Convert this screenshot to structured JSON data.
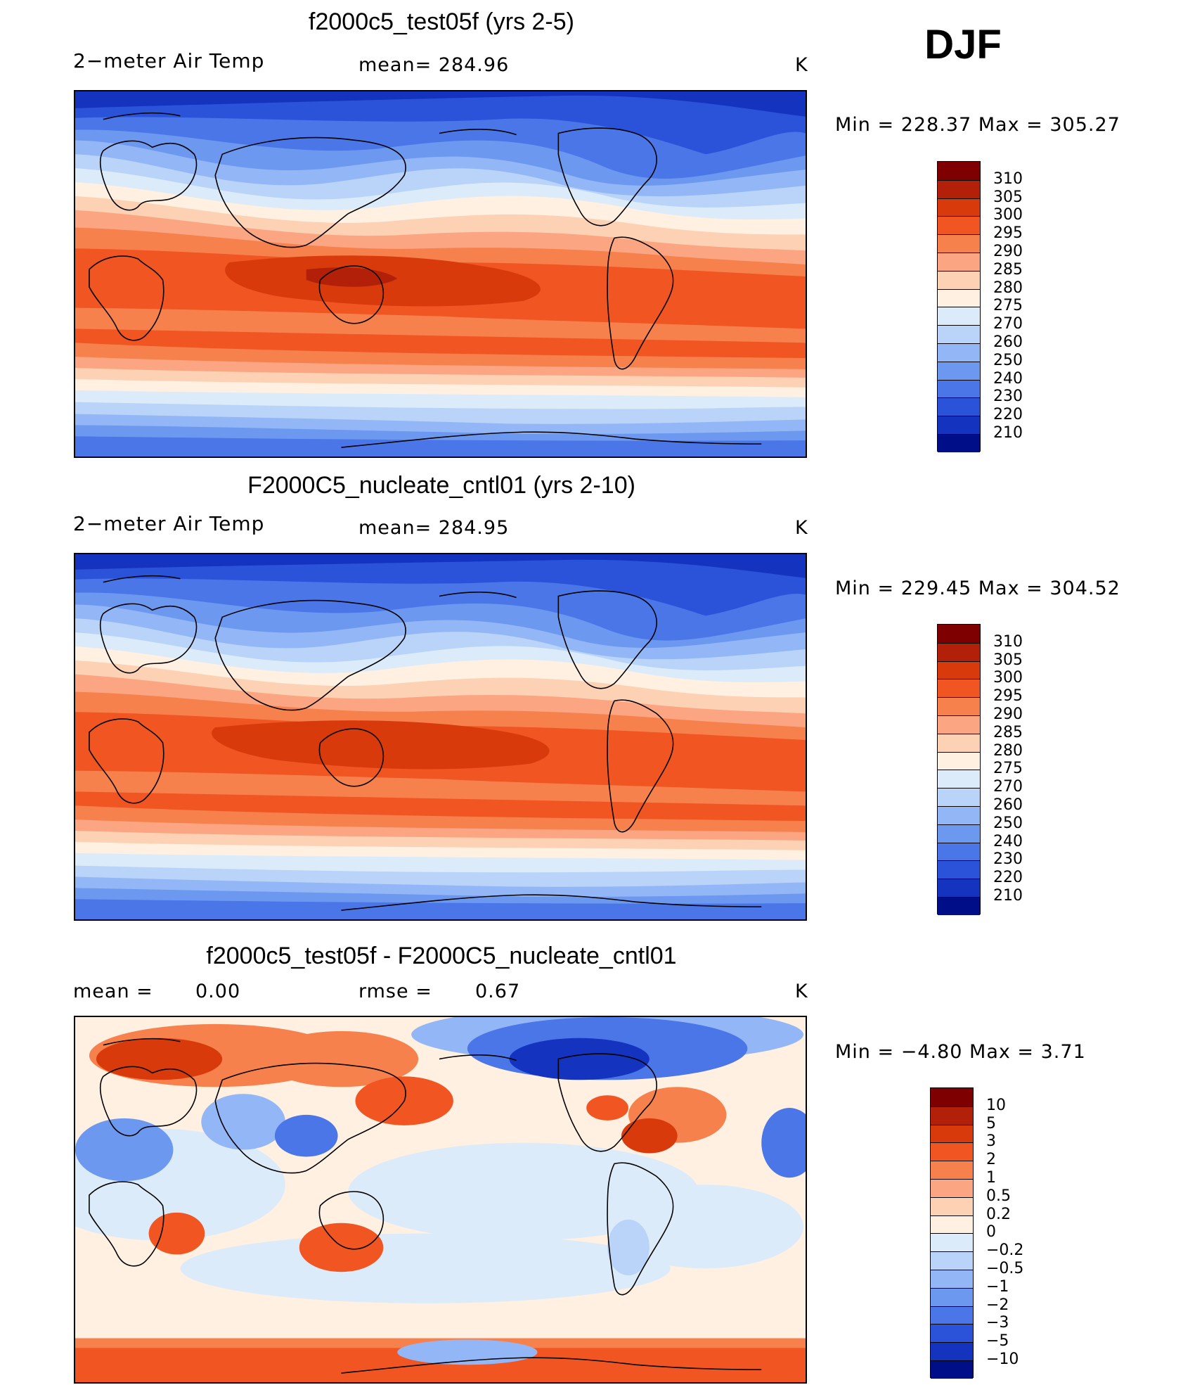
{
  "season": "DJF",
  "panels": [
    {
      "title": "f2000c5_test05f (yrs 2-5)",
      "left_label": "2−meter Air Temp",
      "mean_label": "mean=  284.96",
      "units": "K",
      "minmax": "Min  =  228.37  Max  =  305.27",
      "colorbar": {
        "labels": [
          "310",
          "305",
          "300",
          "295",
          "290",
          "285",
          "280",
          "275",
          "270",
          "260",
          "250",
          "240",
          "230",
          "220",
          "210"
        ],
        "colors": [
          "#7f0000",
          "#b2200a",
          "#d93a0c",
          "#f05522",
          "#f7814d",
          "#fba582",
          "#fdd1b3",
          "#fff0e2",
          "#dcebfa",
          "#b9d4f8",
          "#93b7f6",
          "#6d98f0",
          "#4a76e8",
          "#2a53da",
          "#1433bf",
          "#000f87"
        ]
      }
    },
    {
      "title": "F2000C5_nucleate_cntl01 (yrs 2-10)",
      "left_label": "2−meter Air Temp",
      "mean_label": "mean=  284.95",
      "units": "K",
      "minmax": "Min  =  229.45  Max  =  304.52",
      "colorbar": {
        "labels": [
          "310",
          "305",
          "300",
          "295",
          "290",
          "285",
          "280",
          "275",
          "270",
          "260",
          "250",
          "240",
          "230",
          "220",
          "210"
        ],
        "colors": [
          "#7f0000",
          "#b2200a",
          "#d93a0c",
          "#f05522",
          "#f7814d",
          "#fba582",
          "#fdd1b3",
          "#fff0e2",
          "#dcebfa",
          "#b9d4f8",
          "#93b7f6",
          "#6d98f0",
          "#4a76e8",
          "#2a53da",
          "#1433bf",
          "#000f87"
        ]
      }
    },
    {
      "title": "f2000c5_test05f - F2000C5_nucleate_cntl01",
      "left_label": "mean  =",
      "left_value": "0.00",
      "mean_label": "rmse  =",
      "mean_value": "0.67",
      "units": "K",
      "minmax": "Min  =   −4.80  Max  =      3.71",
      "colorbar": {
        "labels": [
          "10",
          "5",
          "3",
          "2",
          "1",
          "0.5",
          "0.2",
          "0",
          "−0.2",
          "−0.5",
          "−1",
          "−2",
          "−3",
          "−5",
          "−10"
        ],
        "colors": [
          "#7f0000",
          "#b2200a",
          "#d93a0c",
          "#f05522",
          "#f7814d",
          "#fba582",
          "#fdd1b3",
          "#fff0e2",
          "#dcebfa",
          "#b9d4f8",
          "#93b7f6",
          "#6d98f0",
          "#4a76e8",
          "#2a53da",
          "#1433bf",
          "#000f87"
        ]
      }
    }
  ]
}
